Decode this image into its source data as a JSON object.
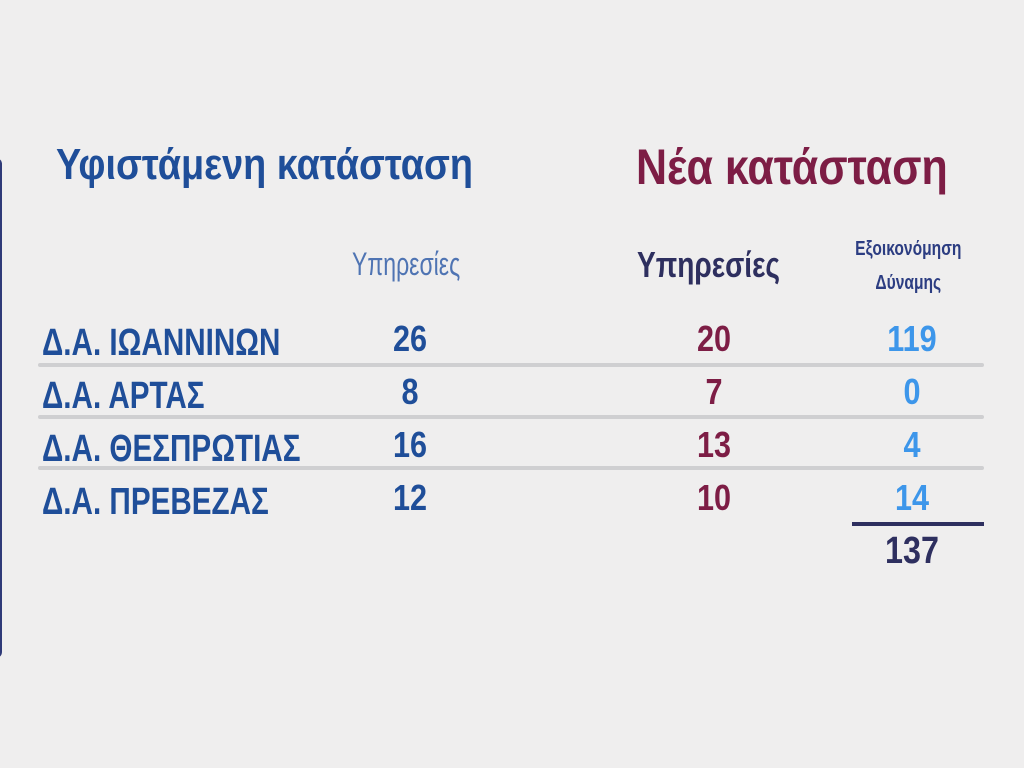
{
  "headings": {
    "current": "Υφιστάμενη κατάσταση",
    "new": "Νέα κατάσταση"
  },
  "columns": {
    "current_services": "Υπηρεσίες",
    "new_services": "Υπηρεσίες",
    "savings_line1": "Εξοικονόμηση",
    "savings_line2": "Δύναμης"
  },
  "rows": [
    {
      "name": "Δ.Α. ΙΩΑΝΝΙΝΩΝ",
      "current": "26",
      "new": "20",
      "savings": "119"
    },
    {
      "name": "Δ.Α. ΑΡΤΑΣ",
      "current": "8",
      "new": "7",
      "savings": "0"
    },
    {
      "name": "Δ.Α. ΘΕΣΠΡΩΤΙΑΣ",
      "current": "16",
      "new": "13",
      "savings": "4"
    },
    {
      "name": "Δ.Α. ΠΡΕΒΕΖΑΣ",
      "current": "12",
      "new": "10",
      "savings": "14"
    }
  ],
  "total_savings": "137",
  "colors": {
    "current_blue": "#1f4e99",
    "new_maroon": "#7d1d45",
    "savings_light_blue": "#3d96ea",
    "dark_navy": "#2e2f5f",
    "divider_gray": "#cfcfd1",
    "background": "#efeeee"
  }
}
